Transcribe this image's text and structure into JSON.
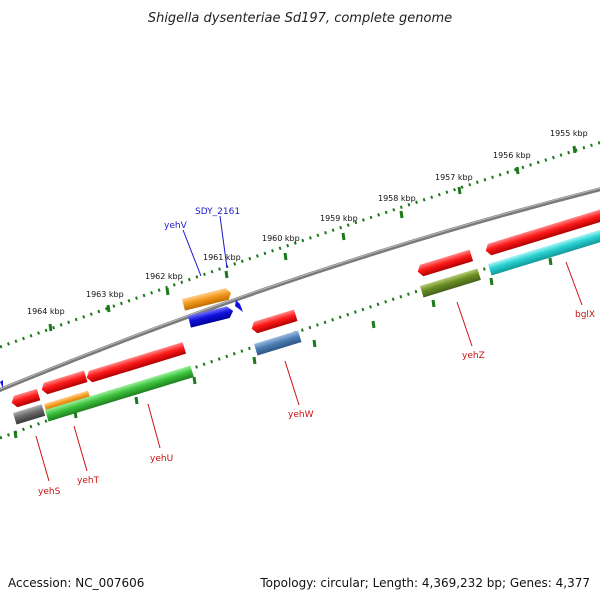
{
  "title": "Shigella dysenteriae Sd197, complete genome",
  "footer": {
    "accession": "Accession: NC_007606",
    "summary": "Topology: circular; Length: 4,369,232 bp; Genes: 4,377"
  },
  "kbp_labels": [
    "1964 kbp",
    "1963 kbp",
    "1962 kbp",
    "1961 kbp",
    "1960 kbp",
    "1959 kbp",
    "1958 kbp",
    "1957 kbp",
    "1956 kbp",
    "1955 kbp"
  ],
  "top_genes": [
    {
      "name": "yehV",
      "color": "#f39a1e"
    },
    {
      "name": "SDY_2161",
      "color": "#1111dd"
    }
  ],
  "bottom_genes": [
    {
      "name": "yehS",
      "color": "#666666"
    },
    {
      "name": "yehT",
      "color": "#f39a1e"
    },
    {
      "name": "yehU",
      "color": "#3cbf3c"
    },
    {
      "name": "yehW",
      "color": "#4f7fb5"
    },
    {
      "name": "yehZ",
      "color": "#6b8e23"
    },
    {
      "name": "bglX",
      "color": "#2fd4d4"
    }
  ],
  "colors": {
    "forward_genes": "#ee1111",
    "backbone": "#808080",
    "ticks": "#1a7a1a"
  }
}
